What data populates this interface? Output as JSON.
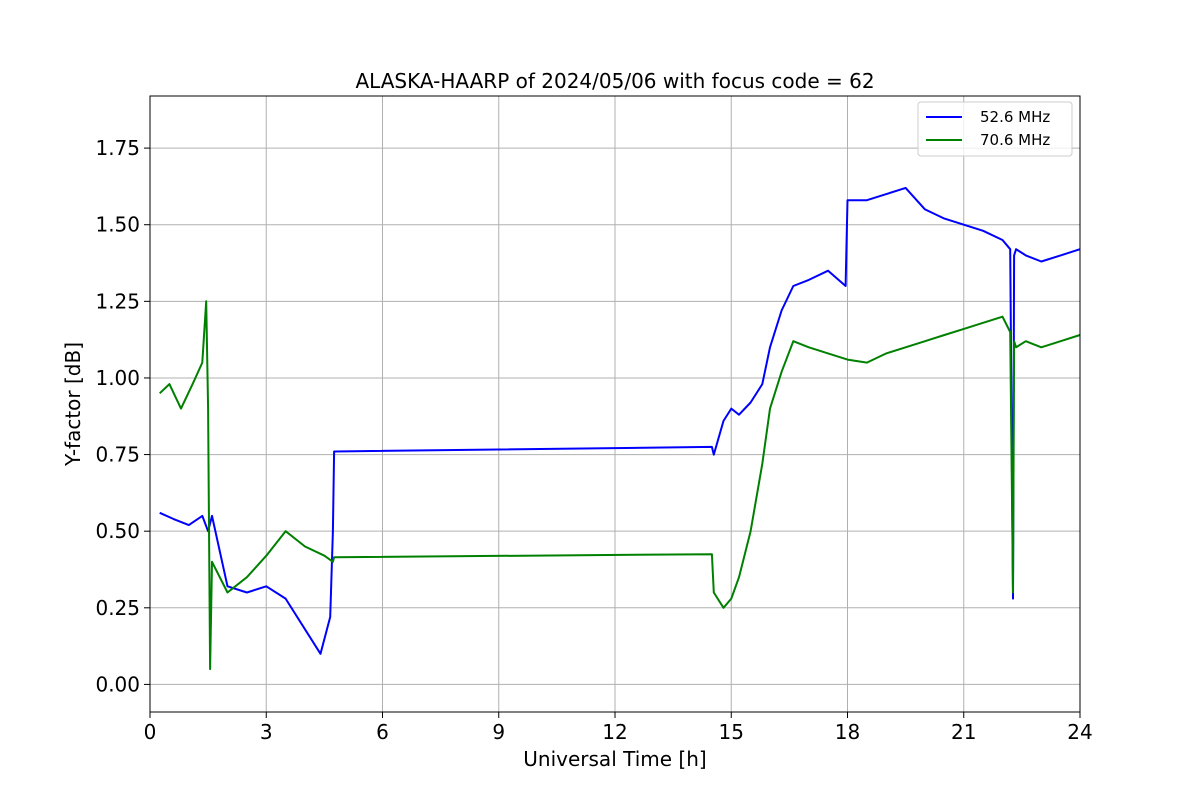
{
  "chart_data": {
    "type": "line",
    "title": "ALASKA-HAARP of 2024/05/06 with focus code = 62",
    "xlabel": "Universal Time [h]",
    "ylabel": "Y-factor [dB]",
    "xlim": [
      0,
      24
    ],
    "ylim": [
      -0.09,
      1.92
    ],
    "xticks": [
      0,
      3,
      6,
      9,
      12,
      15,
      18,
      21,
      24
    ],
    "yticks": [
      0.0,
      0.25,
      0.5,
      0.75,
      1.0,
      1.25,
      1.5,
      1.75
    ],
    "ytick_labels": [
      "0.00",
      "0.25",
      "0.50",
      "0.75",
      "1.00",
      "1.25",
      "1.50",
      "1.75"
    ],
    "grid": true,
    "legend_position": "top-right",
    "series": [
      {
        "name": "52.6 MHz",
        "color": "#0000ff",
        "x": [
          0.25,
          0.6,
          1.0,
          1.35,
          1.5,
          1.6,
          2.0,
          2.5,
          3.0,
          3.5,
          4.0,
          4.4,
          4.65,
          4.72,
          4.75,
          14.5,
          14.55,
          14.8,
          15.0,
          15.2,
          15.5,
          15.8,
          16.0,
          16.3,
          16.6,
          17.0,
          17.5,
          17.95,
          18.0,
          18.5,
          19.0,
          19.5,
          20.0,
          20.5,
          21.0,
          21.5,
          22.0,
          22.2,
          22.27,
          22.3,
          22.35,
          22.6,
          23.0,
          23.5,
          24.0
        ],
        "y": [
          0.56,
          0.54,
          0.52,
          0.55,
          0.5,
          0.55,
          0.32,
          0.3,
          0.32,
          0.28,
          0.18,
          0.1,
          0.22,
          0.5,
          0.76,
          0.775,
          0.75,
          0.86,
          0.9,
          0.88,
          0.92,
          0.98,
          1.1,
          1.22,
          1.3,
          1.32,
          1.35,
          1.3,
          1.58,
          1.58,
          1.6,
          1.62,
          1.55,
          1.52,
          1.5,
          1.48,
          1.45,
          1.42,
          0.28,
          1.4,
          1.42,
          1.4,
          1.38,
          1.4,
          1.42
        ]
      },
      {
        "name": "70.6 MHz",
        "color": "#008000",
        "x": [
          0.25,
          0.5,
          0.8,
          1.1,
          1.35,
          1.45,
          1.5,
          1.55,
          1.6,
          2.0,
          2.5,
          3.0,
          3.5,
          4.0,
          4.5,
          4.72,
          4.75,
          14.5,
          14.55,
          14.8,
          15.0,
          15.2,
          15.5,
          15.8,
          16.0,
          16.3,
          16.6,
          17.0,
          17.5,
          18.0,
          18.5,
          19.0,
          19.5,
          20.0,
          20.5,
          21.0,
          21.5,
          22.0,
          22.2,
          22.27,
          22.3,
          22.35,
          22.6,
          23.0,
          23.5,
          24.0
        ],
        "y": [
          0.95,
          0.98,
          0.9,
          0.98,
          1.05,
          1.25,
          0.9,
          0.05,
          0.4,
          0.3,
          0.35,
          0.42,
          0.5,
          0.45,
          0.42,
          0.4,
          0.415,
          0.425,
          0.3,
          0.25,
          0.28,
          0.35,
          0.5,
          0.72,
          0.9,
          1.02,
          1.12,
          1.1,
          1.08,
          1.06,
          1.05,
          1.08,
          1.1,
          1.12,
          1.14,
          1.16,
          1.18,
          1.2,
          1.15,
          0.3,
          1.12,
          1.1,
          1.12,
          1.1,
          1.12,
          1.14
        ]
      }
    ]
  }
}
